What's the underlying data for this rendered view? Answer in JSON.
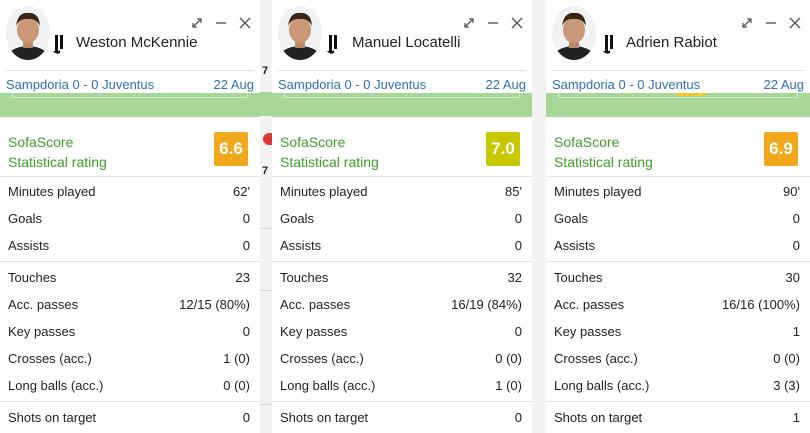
{
  "colors": {
    "rating_orange": "#f2a81d",
    "rating_yellow": "#c8c800",
    "sofascore_green": "#3f9e2a",
    "match_blue": "#2f6fb7",
    "field_green": "#a7d89a"
  },
  "gap_badges": [
    "7",
    "7"
  ],
  "panels": [
    {
      "player_name": "Weston McKennie",
      "match_teams": "Sampdoria 0 - 0 Juventus",
      "match_date": "22 Aug",
      "rating_title": "SofaScore",
      "rating_subtitle": "Statistical rating",
      "rating_value": "6.6",
      "rating_color": "#f2a81d",
      "stats": [
        {
          "label": "Minutes played",
          "value": "62'"
        },
        {
          "label": "Goals",
          "value": "0"
        },
        {
          "label": "Assists",
          "value": "0"
        },
        {
          "label": "Touches",
          "value": "23"
        },
        {
          "label": "Acc. passes",
          "value": "12/15 (80%)"
        },
        {
          "label": "Key passes",
          "value": "0"
        },
        {
          "label": "Crosses (acc.)",
          "value": "1 (0)"
        },
        {
          "label": "Long balls (acc.)",
          "value": "0 (0)"
        },
        {
          "label": "Shots on target",
          "value": "0"
        }
      ]
    },
    {
      "player_name": "Manuel Locatelli",
      "match_teams": "Sampdoria 0 - 0 Juventus",
      "match_date": "22 Aug",
      "rating_title": "SofaScore",
      "rating_subtitle": "Statistical rating",
      "rating_value": "7.0",
      "rating_color": "#c8c800",
      "stats": [
        {
          "label": "Minutes played",
          "value": "85'"
        },
        {
          "label": "Goals",
          "value": "0"
        },
        {
          "label": "Assists",
          "value": "0"
        },
        {
          "label": "Touches",
          "value": "32"
        },
        {
          "label": "Acc. passes",
          "value": "16/19 (84%)"
        },
        {
          "label": "Key passes",
          "value": "0"
        },
        {
          "label": "Crosses (acc.)",
          "value": "0 (0)"
        },
        {
          "label": "Long balls (acc.)",
          "value": "1 (0)"
        },
        {
          "label": "Shots on target",
          "value": "0"
        }
      ]
    },
    {
      "player_name": "Adrien Rabiot",
      "match_teams": "Sampdoria 0 - 0 Juventus",
      "match_date": "22 Aug",
      "rating_title": "SofaScore",
      "rating_subtitle": "Statistical rating",
      "rating_value": "6.9",
      "rating_color": "#f2a81d",
      "stats": [
        {
          "label": "Minutes played",
          "value": "90'"
        },
        {
          "label": "Goals",
          "value": "0"
        },
        {
          "label": "Assists",
          "value": "0"
        },
        {
          "label": "Touches",
          "value": "30"
        },
        {
          "label": "Acc. passes",
          "value": "16/16 (100%)"
        },
        {
          "label": "Key passes",
          "value": "1"
        },
        {
          "label": "Crosses (acc.)",
          "value": "0 (0)"
        },
        {
          "label": "Long balls (acc.)",
          "value": "3 (3)"
        },
        {
          "label": "Shots on target",
          "value": "1"
        }
      ]
    }
  ]
}
